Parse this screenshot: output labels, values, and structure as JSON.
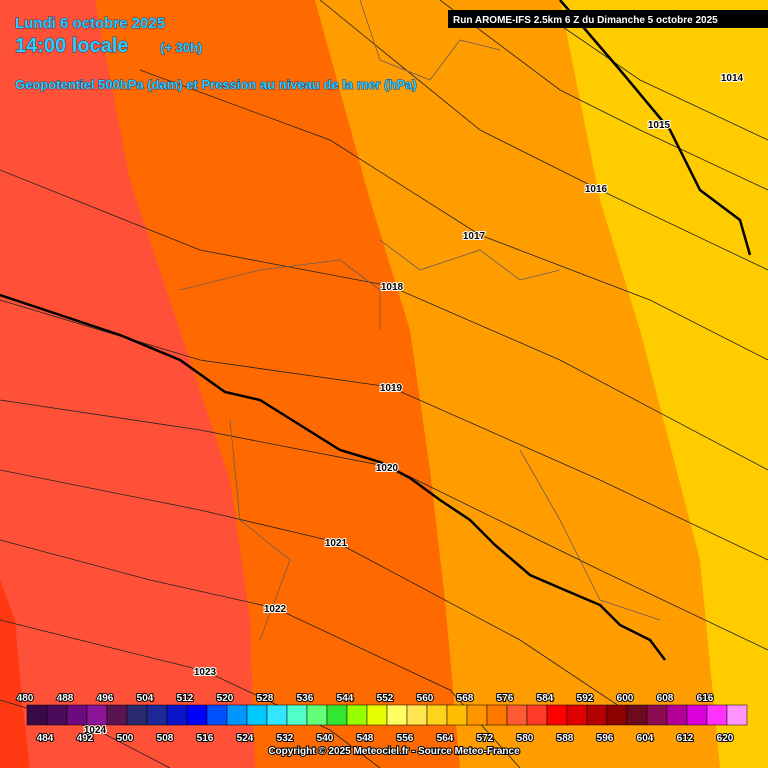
{
  "header": {
    "date": "Lundi 6 octobre 2025",
    "time": "14:00 locale",
    "lead": "(+ 30h)",
    "subtitle": "Geopotentiel 500hPa (dam) et Pression au niveau de la mer (hPa)",
    "run": "Run AROME-IFS 2.5km 6 Z du Dimanche 5 octobre 2025"
  },
  "isobar_labels": [
    "1014",
    "1015",
    "1016",
    "1017",
    "1018",
    "1019",
    "1020",
    "1021",
    "1022",
    "1023",
    "1024"
  ],
  "legend": {
    "top_labels": [
      "480",
      "496",
      "512",
      "528",
      "544",
      "560",
      "576",
      "592",
      "608",
      "488",
      "504",
      "520",
      "536",
      "552",
      "568",
      "584",
      "600",
      "616"
    ],
    "bottom_labels": [
      "484",
      "500",
      "516",
      "532",
      "548",
      "564",
      "580",
      "596",
      "612",
      "492",
      "508",
      "524",
      "540",
      "556",
      "572",
      "588",
      "604",
      "620"
    ],
    "colors": [
      "#3a0a46",
      "#4b0a5a",
      "#6e0a80",
      "#8c1496",
      "#5a1450",
      "#2a2a6e",
      "#1e2896",
      "#0a14c8",
      "#0000ff",
      "#0050ff",
      "#0096ff",
      "#00c8ff",
      "#32e6ff",
      "#50ffc8",
      "#64ff78",
      "#32e632",
      "#96ff00",
      "#e6ff00",
      "#ffff64",
      "#ffe650",
      "#ffd21e",
      "#ffbe00",
      "#ff9600",
      "#ff7800",
      "#ff5a32",
      "#ff3c28",
      "#ff0000",
      "#e10000",
      "#b40000",
      "#8c0000",
      "#6e0a1e",
      "#8c0a50",
      "#b40096",
      "#dc00dc",
      "#ff32ff",
      "#ff96ff"
    ]
  },
  "copyright": "Copyright © 2025 Meteociel.fr - Source Meteo-France"
}
